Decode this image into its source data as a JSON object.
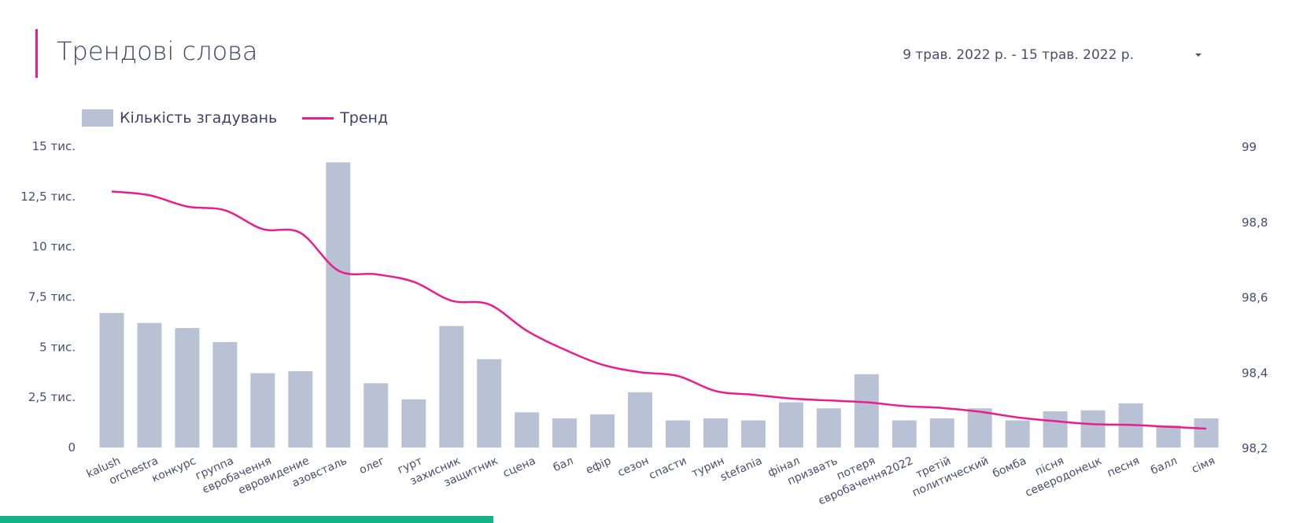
{
  "header": {
    "title": "Трендові слова",
    "date_range": "9 трав. 2022 р. - 15 трав. 2022 р.",
    "dropdown_icon": "caret-down-icon"
  },
  "colors": {
    "bar": "#b9c1d5",
    "line": "#e91e8c",
    "accent": "#e91e8c",
    "bottom_strip": "#16b38a"
  },
  "chart_data": {
    "type": "bar",
    "legend_position": "top-left",
    "grid": false,
    "categories": [
      "kalush",
      "orchestra",
      "конкурс",
      "группа",
      "євробачення",
      "евровидение",
      "азовсталь",
      "олег",
      "гурт",
      "захисник",
      "защитник",
      "сцена",
      "бал",
      "ефір",
      "сезон",
      "спасти",
      "турин",
      "stefania",
      "фінал",
      "призвать",
      "потеря",
      "євробачення2022",
      "третій",
      "политический",
      "бомба",
      "пісня",
      "северодонецк",
      "песня",
      "балл",
      "сімя"
    ],
    "series": [
      {
        "name": "Кількість згадувань",
        "axis": "left",
        "type": "bar",
        "values": [
          6700,
          6200,
          5950,
          5250,
          3700,
          3800,
          14200,
          3200,
          2400,
          6050,
          4400,
          1750,
          1450,
          1650,
          2750,
          1350,
          1450,
          1350,
          2250,
          1950,
          3650,
          1350,
          1450,
          1950,
          1350,
          1800,
          1850,
          2200,
          1100,
          1450
        ]
      },
      {
        "name": "Тренд",
        "axis": "right",
        "type": "line",
        "values": [
          98.88,
          98.87,
          98.84,
          98.83,
          98.78,
          98.77,
          98.67,
          98.66,
          98.64,
          98.59,
          98.58,
          98.51,
          98.46,
          98.42,
          98.4,
          98.39,
          98.35,
          98.34,
          98.33,
          98.325,
          98.32,
          98.31,
          98.305,
          98.295,
          98.28,
          98.27,
          98.262,
          98.26,
          98.255,
          98.25
        ]
      }
    ],
    "y_left": {
      "lim": [
        0,
        15000
      ],
      "ticks": [
        0,
        2500,
        5000,
        7500,
        10000,
        12500,
        15000
      ],
      "tick_labels": [
        "0",
        "2,5 тис.",
        "5 тис.",
        "7,5 тис.",
        "10 тис.",
        "12,5 тис.",
        "15 тис."
      ]
    },
    "y_right": {
      "lim": [
        98.2,
        99
      ],
      "ticks": [
        98.2,
        98.4,
        98.6,
        98.8,
        99
      ],
      "tick_labels": [
        "98,2",
        "98,4",
        "98,6",
        "98,8",
        "99"
      ]
    }
  }
}
